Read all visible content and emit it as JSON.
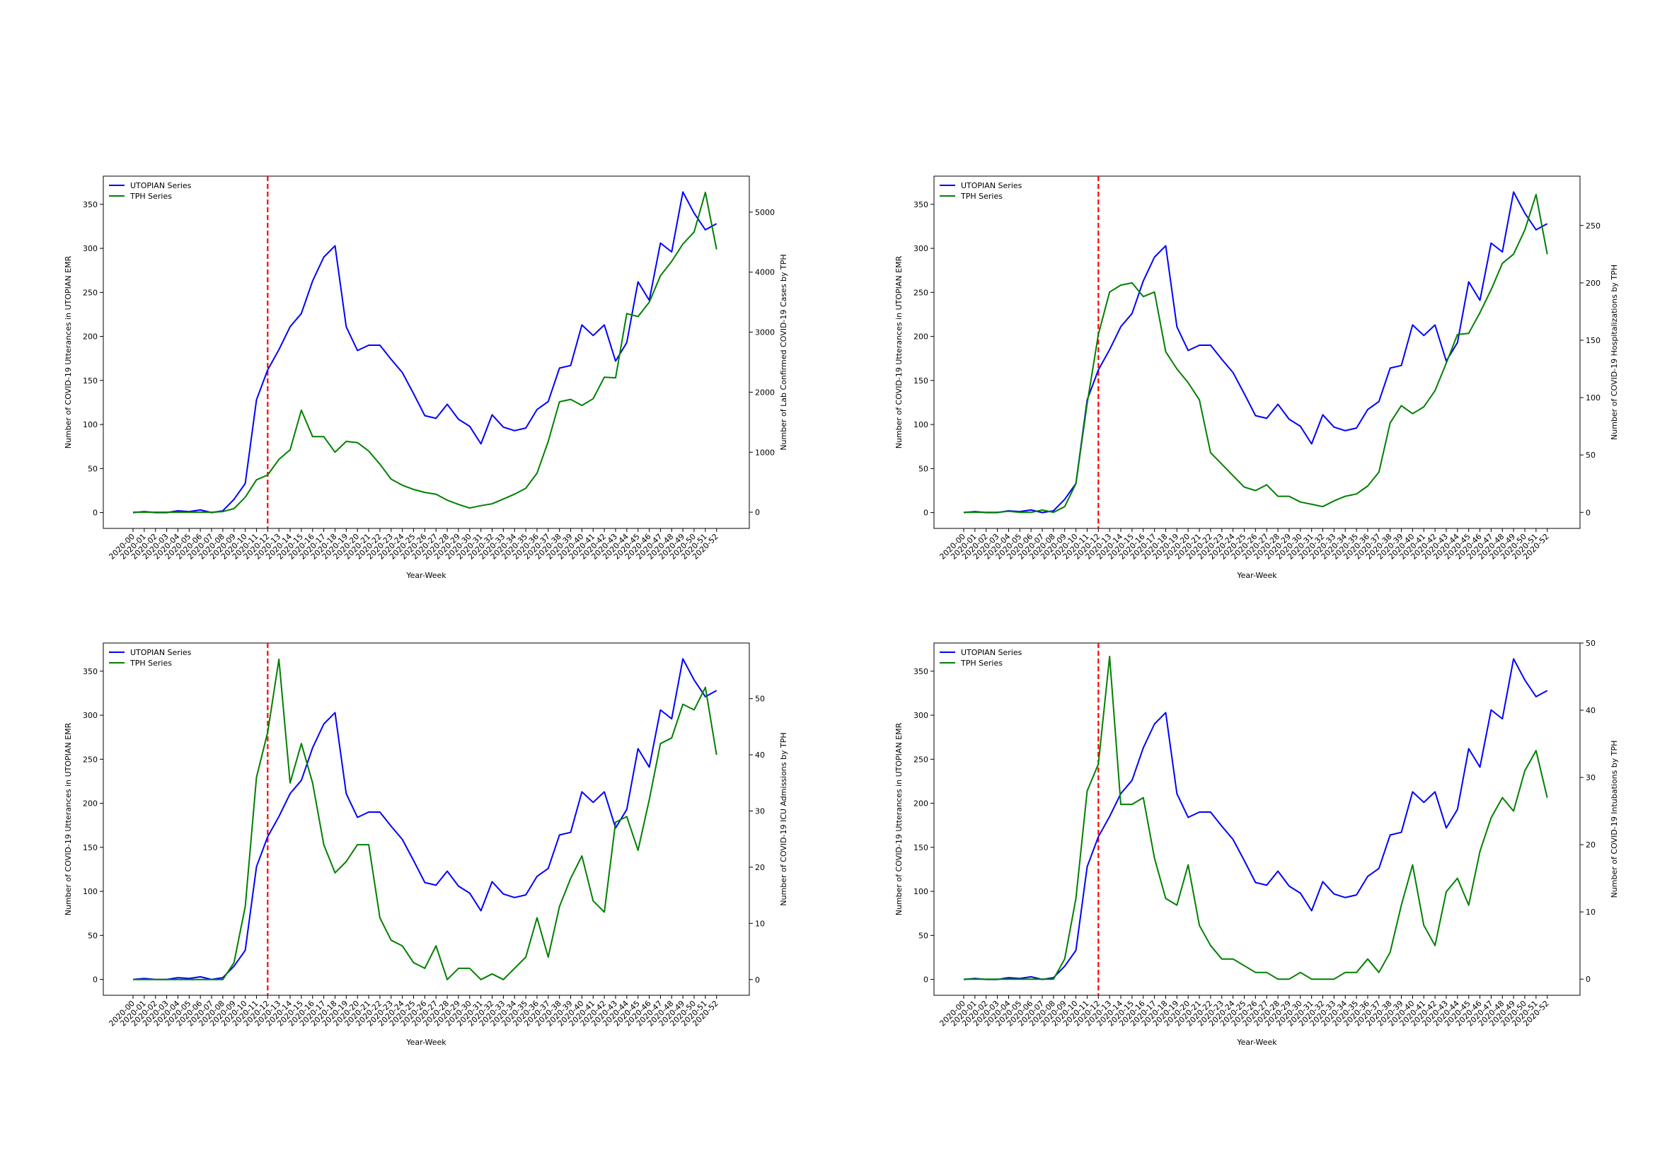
{
  "styles": {
    "utopian_color": "#0000ff",
    "tph_color": "#008000",
    "marker_color": "#ff0000",
    "marker_style": "dashed"
  },
  "marker_week": "2020-12",
  "chart_data": [
    {
      "type": "line",
      "xlabel": "Year-Week",
      "ylabel": "Number of COVID-19 Utterances in UTOPIAN EMR",
      "ylabel_right": "Number of Lab Confirmed COVID-19 Cases by TPH",
      "x": [
        "2020-00",
        "2020-01",
        "2020-02",
        "2020-03",
        "2020-04",
        "2020-05",
        "2020-06",
        "2020-07",
        "2020-08",
        "2020-09",
        "2020-10",
        "2020-11",
        "2020-12",
        "2020-13",
        "2020-14",
        "2020-15",
        "2020-16",
        "2020-17",
        "2020-18",
        "2020-19",
        "2020-20",
        "2020-21",
        "2020-22",
        "2020-23",
        "2020-24",
        "2020-25",
        "2020-26",
        "2020-27",
        "2020-28",
        "2020-29",
        "2020-30",
        "2020-31",
        "2020-32",
        "2020-33",
        "2020-34",
        "2020-35",
        "2020-36",
        "2020-37",
        "2020-38",
        "2020-39",
        "2020-40",
        "2020-41",
        "2020-42",
        "2020-43",
        "2020-44",
        "2020-45",
        "2020-46",
        "2020-47",
        "2020-48",
        "2020-49",
        "2020-50",
        "2020-51",
        "2020-52"
      ],
      "ylim": [
        -18,
        382
      ],
      "yticks": [
        0,
        50,
        100,
        150,
        200,
        250,
        300,
        350
      ],
      "ylim_right": [
        -270,
        5600
      ],
      "yticks_right": [
        0,
        1000,
        2000,
        3000,
        4000,
        5000
      ],
      "legend": "top-left",
      "series": [
        {
          "name": "UTOPIAN Series",
          "axis": "left",
          "values": [
            0,
            1,
            0,
            0,
            2,
            1,
            3,
            0,
            2,
            15,
            33,
            128,
            162,
            185,
            211,
            226,
            263,
            290,
            303,
            211,
            184,
            190,
            190,
            174,
            159,
            135,
            110,
            107,
            123,
            106,
            98,
            78,
            111,
            97,
            93,
            96,
            117,
            126,
            164,
            167,
            213,
            201,
            213,
            172,
            193,
            262,
            241,
            306,
            296,
            364,
            340,
            321,
            328
          ]
        },
        {
          "name": "TPH Series",
          "axis": "right",
          "values": [
            0,
            0,
            0,
            0,
            0,
            0,
            0,
            0,
            10,
            60,
            250,
            540,
            620,
            880,
            1040,
            1700,
            1260,
            1260,
            1000,
            1180,
            1160,
            1020,
            800,
            550,
            450,
            380,
            330,
            300,
            200,
            130,
            70,
            110,
            140,
            220,
            300,
            400,
            650,
            1180,
            1840,
            1880,
            1780,
            1890,
            2250,
            2240,
            3310,
            3260,
            3500,
            3940,
            4180,
            4470,
            4670,
            5330,
            4380
          ]
        }
      ]
    },
    {
      "type": "line",
      "xlabel": "Year-Week",
      "ylabel": "Number of COVID-19 Utterances in UTOPIAN EMR",
      "ylabel_right": "Number of COVID-19 Hospitalizations by TPH",
      "x": [
        "2020-00",
        "2020-01",
        "2020-02",
        "2020-03",
        "2020-04",
        "2020-05",
        "2020-06",
        "2020-07",
        "2020-08",
        "2020-09",
        "2020-10",
        "2020-11",
        "2020-12",
        "2020-13",
        "2020-14",
        "2020-15",
        "2020-16",
        "2020-17",
        "2020-18",
        "2020-19",
        "2020-20",
        "2020-21",
        "2020-22",
        "2020-23",
        "2020-24",
        "2020-25",
        "2020-26",
        "2020-27",
        "2020-28",
        "2020-29",
        "2020-30",
        "2020-31",
        "2020-32",
        "2020-33",
        "2020-34",
        "2020-35",
        "2020-36",
        "2020-37",
        "2020-38",
        "2020-39",
        "2020-40",
        "2020-41",
        "2020-42",
        "2020-43",
        "2020-44",
        "2020-45",
        "2020-46",
        "2020-47",
        "2020-48",
        "2020-49",
        "2020-50",
        "2020-51",
        "2020-52"
      ],
      "ylim": [
        -18,
        382
      ],
      "yticks": [
        0,
        50,
        100,
        150,
        200,
        250,
        300,
        350
      ],
      "ylim_right": [
        -14,
        293
      ],
      "yticks_right": [
        0,
        50,
        100,
        150,
        200,
        250
      ],
      "legend": "top-left",
      "series": [
        {
          "name": "UTOPIAN Series",
          "axis": "left",
          "values": [
            0,
            1,
            0,
            0,
            2,
            1,
            3,
            0,
            2,
            15,
            33,
            128,
            162,
            185,
            211,
            226,
            263,
            290,
            303,
            211,
            184,
            190,
            190,
            174,
            159,
            135,
            110,
            107,
            123,
            106,
            98,
            78,
            111,
            97,
            93,
            96,
            117,
            126,
            164,
            167,
            213,
            201,
            213,
            172,
            193,
            262,
            241,
            306,
            296,
            364,
            340,
            321,
            328
          ]
        },
        {
          "name": "TPH Series",
          "axis": "right",
          "values": [
            0,
            0,
            0,
            0,
            1,
            0,
            0,
            2,
            0,
            5,
            25,
            95,
            155,
            192,
            198,
            200,
            188,
            192,
            140,
            125,
            113,
            98,
            52,
            42,
            32,
            22,
            19,
            24,
            14,
            14,
            9,
            7,
            5,
            10,
            14,
            16,
            23,
            35,
            78,
            93,
            86,
            92,
            106,
            130,
            155,
            156,
            174,
            194,
            217,
            225,
            246,
            277,
            225
          ]
        }
      ]
    },
    {
      "type": "line",
      "xlabel": "Year-Week",
      "ylabel": "Number of COVID-19 Utterances in UTOPIAN EMR",
      "ylabel_right": "Number of COVID-19 ICU Admissions by TPH",
      "x": [
        "2020-00",
        "2020-01",
        "2020-02",
        "2020-03",
        "2020-04",
        "2020-05",
        "2020-06",
        "2020-07",
        "2020-08",
        "2020-09",
        "2020-10",
        "2020-11",
        "2020-12",
        "2020-13",
        "2020-14",
        "2020-15",
        "2020-16",
        "2020-17",
        "2020-18",
        "2020-19",
        "2020-20",
        "2020-21",
        "2020-22",
        "2020-23",
        "2020-24",
        "2020-25",
        "2020-26",
        "2020-27",
        "2020-28",
        "2020-29",
        "2020-30",
        "2020-31",
        "2020-32",
        "2020-33",
        "2020-34",
        "2020-35",
        "2020-36",
        "2020-37",
        "2020-38",
        "2020-39",
        "2020-40",
        "2020-41",
        "2020-42",
        "2020-43",
        "2020-44",
        "2020-45",
        "2020-46",
        "2020-47",
        "2020-48",
        "2020-49",
        "2020-50",
        "2020-51",
        "2020-52"
      ],
      "ylim": [
        -18,
        382
      ],
      "yticks": [
        0,
        50,
        100,
        150,
        200,
        250,
        300,
        350
      ],
      "ylim_right": [
        -2.8,
        59.9
      ],
      "yticks_right": [
        0,
        10,
        20,
        30,
        40,
        50
      ],
      "legend": "top-left",
      "series": [
        {
          "name": "UTOPIAN Series",
          "axis": "left",
          "values": [
            0,
            1,
            0,
            0,
            2,
            1,
            3,
            0,
            2,
            15,
            33,
            128,
            162,
            185,
            211,
            226,
            263,
            290,
            303,
            211,
            184,
            190,
            190,
            174,
            159,
            135,
            110,
            107,
            123,
            106,
            98,
            78,
            111,
            97,
            93,
            96,
            117,
            126,
            164,
            167,
            213,
            201,
            213,
            172,
            193,
            262,
            241,
            306,
            296,
            364,
            340,
            321,
            328
          ]
        },
        {
          "name": "TPH Series",
          "axis": "right",
          "values": [
            0,
            0,
            0,
            0,
            0,
            0,
            0,
            0,
            0,
            3,
            13,
            36,
            44,
            57,
            35,
            42,
            35,
            24,
            19,
            21,
            24,
            24,
            11,
            7,
            6,
            3,
            2,
            6,
            0,
            2,
            2,
            0,
            1,
            0,
            2,
            4,
            11,
            4,
            13,
            18,
            22,
            14,
            12,
            28,
            29,
            23,
            32,
            42,
            43,
            49,
            48,
            52,
            40
          ]
        }
      ]
    },
    {
      "type": "line",
      "xlabel": "Year-Week",
      "ylabel": "Number of COVID-19 Utterances in UTOPIAN EMR",
      "ylabel_right": "Number of COVID-19 Intubations by TPH",
      "x": [
        "2020-00",
        "2020-01",
        "2020-02",
        "2020-03",
        "2020-04",
        "2020-05",
        "2020-06",
        "2020-07",
        "2020-08",
        "2020-09",
        "2020-10",
        "2020-11",
        "2020-12",
        "2020-13",
        "2020-14",
        "2020-15",
        "2020-16",
        "2020-17",
        "2020-18",
        "2020-19",
        "2020-20",
        "2020-21",
        "2020-22",
        "2020-23",
        "2020-24",
        "2020-25",
        "2020-26",
        "2020-27",
        "2020-28",
        "2020-29",
        "2020-30",
        "2020-31",
        "2020-32",
        "2020-33",
        "2020-34",
        "2020-35",
        "2020-36",
        "2020-37",
        "2020-38",
        "2020-39",
        "2020-40",
        "2020-41",
        "2020-42",
        "2020-43",
        "2020-44",
        "2020-45",
        "2020-46",
        "2020-47",
        "2020-48",
        "2020-49",
        "2020-50",
        "2020-51",
        "2020-52"
      ],
      "ylim": [
        -18,
        382
      ],
      "yticks": [
        0,
        50,
        100,
        150,
        200,
        250,
        300,
        350
      ],
      "ylim_right": [
        -2.4,
        50
      ],
      "yticks_right": [
        0,
        10,
        20,
        30,
        40,
        50
      ],
      "legend": "top-left",
      "series": [
        {
          "name": "UTOPIAN Series",
          "axis": "left",
          "values": [
            0,
            1,
            0,
            0,
            2,
            1,
            3,
            0,
            2,
            15,
            33,
            128,
            162,
            185,
            211,
            226,
            263,
            290,
            303,
            211,
            184,
            190,
            190,
            174,
            159,
            135,
            110,
            107,
            123,
            106,
            98,
            78,
            111,
            97,
            93,
            96,
            117,
            126,
            164,
            167,
            213,
            201,
            213,
            172,
            193,
            262,
            241,
            306,
            296,
            364,
            340,
            321,
            328
          ]
        },
        {
          "name": "TPH Series",
          "axis": "right",
          "values": [
            0,
            0,
            0,
            0,
            0,
            0,
            0,
            0,
            0,
            3,
            12,
            28,
            32,
            48,
            26,
            26,
            27,
            18,
            12,
            11,
            17,
            8,
            5,
            3,
            3,
            2,
            1,
            1,
            0,
            0,
            1,
            0,
            0,
            0,
            1,
            1,
            3,
            1,
            4,
            11,
            17,
            8,
            5,
            13,
            15,
            11,
            19,
            24,
            27,
            25,
            31,
            34,
            27
          ]
        }
      ]
    }
  ]
}
